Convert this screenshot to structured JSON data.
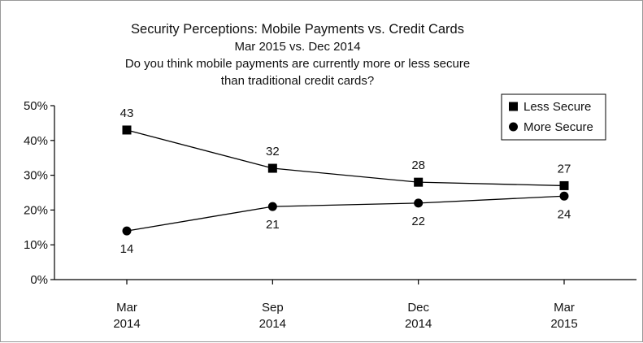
{
  "chart_data": {
    "type": "line",
    "title": "Security Perceptions: Mobile Payments vs. Credit Cards",
    "subtitle": "Mar 2015 vs. Dec 2014",
    "question_line1": "Do you think mobile payments are currently more or less secure",
    "question_line2": "than traditional credit cards?",
    "categories": [
      "Mar|2014",
      "Sep|2014",
      "Dec|2014",
      "Mar|2015"
    ],
    "ylim": [
      0,
      50
    ],
    "yticks": [
      "0%",
      "10%",
      "20%",
      "30%",
      "40%",
      "50%"
    ],
    "legend_position": "top-right",
    "series": [
      {
        "name": "Less Secure",
        "marker": "square",
        "values": [
          43,
          32,
          28,
          27
        ],
        "color": "#000000"
      },
      {
        "name": "More Secure",
        "marker": "circle",
        "values": [
          14,
          21,
          22,
          24
        ],
        "color": "#000000"
      }
    ]
  }
}
